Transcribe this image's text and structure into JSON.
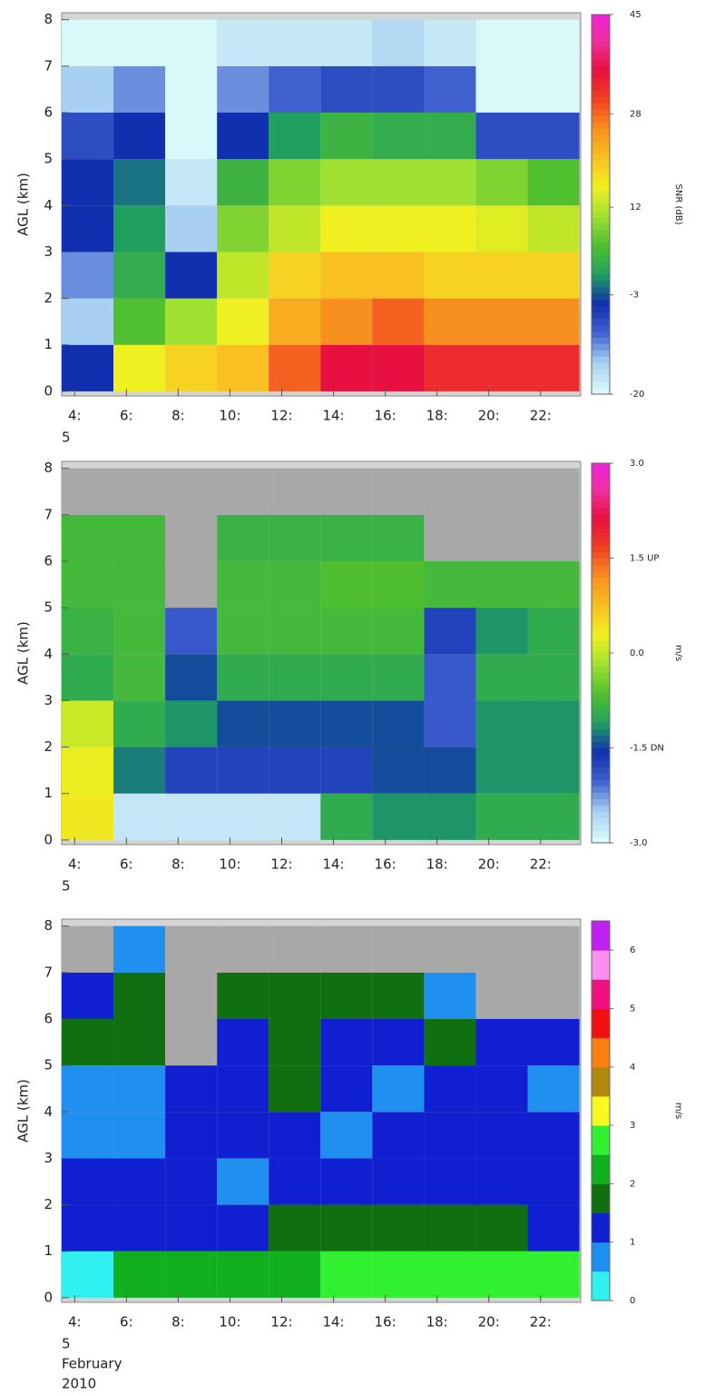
{
  "chart_data": [
    {
      "type": "heatmap",
      "ylabel": "AGL (km)",
      "colorbar_label": "SNR (dB)",
      "x_sublabels": [
        "5"
      ],
      "xlim": [
        3.5,
        23.55
      ],
      "ylim": [
        -0.1,
        8.15
      ],
      "xticks": [
        {
          "value": 4,
          "label": "4:"
        },
        {
          "value": 6,
          "label": "6:"
        },
        {
          "value": 8,
          "label": "8:"
        },
        {
          "value": 10,
          "label": "10:"
        },
        {
          "value": 12,
          "label": "12:"
        },
        {
          "value": 14,
          "label": "14:"
        },
        {
          "value": 16,
          "label": "16:"
        },
        {
          "value": 18,
          "label": "18:"
        },
        {
          "value": 20,
          "label": "20:"
        },
        {
          "value": 22,
          "label": "22:"
        }
      ],
      "yticks": [
        0,
        1,
        2,
        3,
        4,
        5,
        6,
        7,
        8
      ],
      "zlim": [
        -20,
        45
      ],
      "zticks": [
        -20,
        -3,
        12,
        28,
        45
      ],
      "discrete": false,
      "colors": [
        "#d8f8fa",
        "#a8d0f0",
        "#4060d0",
        "#1030b0",
        "#20a060",
        "#50c030",
        "#a0e030",
        "#f0f020",
        "#f8c020",
        "#f89020",
        "#f04020",
        "#e81040",
        "#f030a0",
        "#f020e0"
      ],
      "x": [
        4.5,
        6.5,
        8.5,
        10.5,
        12.5,
        14.5,
        16.5,
        18.5,
        20.5,
        22.5
      ],
      "y": [
        0.5,
        1.5,
        2.5,
        3.5,
        4.5,
        5.5,
        6.5,
        7.5
      ],
      "z": [
        [
          -5,
          15,
          18,
          20,
          28,
          35,
          35,
          32,
          32,
          32
        ],
        [
          -15,
          5,
          10,
          15,
          22,
          25,
          28,
          25,
          25,
          25
        ],
        [
          -12,
          2,
          -5,
          12,
          18,
          20,
          20,
          18,
          18,
          18
        ],
        [
          -5,
          0,
          -15,
          8,
          12,
          15,
          15,
          15,
          14,
          12
        ],
        [
          -5,
          -2,
          -18,
          3,
          8,
          10,
          10,
          10,
          8,
          5
        ],
        [
          -8,
          -5,
          -20,
          -5,
          0,
          3,
          2,
          2,
          -8,
          -8
        ],
        [
          -15,
          -12,
          -20,
          -12,
          -10,
          -8,
          -8,
          -10,
          -20,
          -20
        ],
        [
          -20,
          -20,
          -20,
          -18,
          -18,
          -18,
          -16,
          -18,
          -20,
          -20
        ]
      ]
    },
    {
      "type": "heatmap",
      "ylabel": "AGL (km)",
      "colorbar_label": "m/s",
      "x_sublabels": [
        "5"
      ],
      "xlim": [
        3.5,
        23.55
      ],
      "ylim": [
        -0.1,
        8.15
      ],
      "xticks": [
        {
          "value": 4,
          "label": "4:"
        },
        {
          "value": 6,
          "label": "6:"
        },
        {
          "value": 8,
          "label": "8:"
        },
        {
          "value": 10,
          "label": "10:"
        },
        {
          "value": 12,
          "label": "12:"
        },
        {
          "value": 14,
          "label": "14:"
        },
        {
          "value": 16,
          "label": "16:"
        },
        {
          "value": 18,
          "label": "18:"
        },
        {
          "value": 20,
          "label": "20:"
        },
        {
          "value": 22,
          "label": "22:"
        }
      ],
      "yticks": [
        0,
        1,
        2,
        3,
        4,
        5,
        6,
        7,
        8
      ],
      "zlim": [
        -3,
        3
      ],
      "zticks": [
        {
          "value": -3,
          "label": "-3.0"
        },
        {
          "value": -1.5,
          "label": "-1.5 DN"
        },
        {
          "value": 0,
          "label": "0.0"
        },
        {
          "value": 1.5,
          "label": "1.5 UP"
        },
        {
          "value": 3,
          "label": "3.0"
        }
      ],
      "discrete": false,
      "colors": [
        "#d8f8fa",
        "#a8d0f0",
        "#4060d0",
        "#1030b0",
        "#20a060",
        "#50c030",
        "#a0e030",
        "#f0f020",
        "#f8c020",
        "#f89020",
        "#f04020",
        "#e81040",
        "#f030a0",
        "#f020e0"
      ],
      "x": [
        4.5,
        6.5,
        8.5,
        10.5,
        12.5,
        14.5,
        16.5,
        18.5,
        20.5,
        22.5
      ],
      "y": [
        0.5,
        1.5,
        2.5,
        3.5,
        4.5,
        5.5,
        6.5,
        7.5
      ],
      "z": [
        [
          0.3,
          -2.8,
          -2.8,
          -2.8,
          -2.8,
          -1.0,
          -1.2,
          -1.2,
          -1.0,
          -1.0
        ],
        [
          0.2,
          -1.3,
          -1.8,
          -1.8,
          -1.8,
          -1.8,
          -1.5,
          -1.5,
          -1.2,
          -1.2
        ],
        [
          0.0,
          -1.0,
          -1.2,
          -1.5,
          -1.5,
          -1.5,
          -1.5,
          -2.0,
          -1.2,
          -1.2
        ],
        [
          -1.0,
          -0.8,
          -1.5,
          -1.0,
          -1.0,
          -1.0,
          -1.0,
          -2.0,
          -1.0,
          -1.0
        ],
        [
          -0.9,
          -0.8,
          -2.0,
          -0.8,
          -0.8,
          -0.8,
          -0.8,
          -1.8,
          -1.2,
          -1.0
        ],
        [
          -0.8,
          -0.8,
          null,
          -0.8,
          -0.8,
          -0.7,
          -0.7,
          -0.8,
          -0.8,
          -0.8
        ],
        [
          -0.8,
          -0.8,
          null,
          -0.9,
          -0.9,
          -0.9,
          -0.9,
          null,
          null,
          null
        ],
        [
          null,
          null,
          null,
          null,
          null,
          null,
          null,
          null,
          null,
          null
        ]
      ]
    },
    {
      "type": "heatmap",
      "ylabel": "AGL (km)",
      "colorbar_label": "m/s",
      "x_sublabels": [
        "5",
        "February",
        "2010"
      ],
      "xlim": [
        3.5,
        23.55
      ],
      "ylim": [
        -0.1,
        8.15
      ],
      "xticks": [
        {
          "value": 4,
          "label": "4:"
        },
        {
          "value": 6,
          "label": "6:"
        },
        {
          "value": 8,
          "label": "8:"
        },
        {
          "value": 10,
          "label": "10:"
        },
        {
          "value": 12,
          "label": "12:"
        },
        {
          "value": 14,
          "label": "14:"
        },
        {
          "value": 16,
          "label": "16:"
        },
        {
          "value": 18,
          "label": "18:"
        },
        {
          "value": 20,
          "label": "20:"
        },
        {
          "value": 22,
          "label": "22:"
        }
      ],
      "yticks": [
        0,
        1,
        2,
        3,
        4,
        5,
        6,
        7,
        8
      ],
      "zlim": [
        0,
        6.5
      ],
      "zticks": [
        0,
        1,
        2,
        3,
        4,
        5,
        6
      ],
      "discrete": true,
      "colors": [
        "#30f0f0",
        "#2090f0",
        "#1020d0",
        "#107010",
        "#10b020",
        "#30f030",
        "#f8f820",
        "#b08810",
        "#f88010",
        "#f01010",
        "#f01080",
        "#f890f0",
        "#c020f0"
      ],
      "x": [
        4.5,
        6.5,
        8.5,
        10.5,
        12.5,
        14.5,
        16.5,
        18.5,
        20.5,
        22.5
      ],
      "y": [
        0.5,
        1.5,
        2.5,
        3.5,
        4.5,
        5.5,
        6.5,
        7.5
      ],
      "z": [
        [
          0.4,
          2.0,
          2.2,
          2.3,
          2.4,
          2.5,
          2.6,
          2.5,
          2.6,
          2.5
        ],
        [
          1.2,
          1.3,
          1.4,
          1.3,
          1.7,
          1.8,
          1.8,
          1.8,
          1.6,
          1.4
        ],
        [
          1.2,
          1.0,
          1.3,
          0.8,
          1.2,
          1.3,
          1.2,
          1.3,
          1.2,
          1.2
        ],
        [
          0.8,
          0.9,
          1.0,
          1.2,
          1.3,
          0.8,
          1.3,
          1.2,
          1.3,
          1.2
        ],
        [
          0.8,
          0.8,
          1.2,
          1.2,
          1.7,
          1.2,
          0.8,
          1.2,
          1.2,
          0.8
        ],
        [
          1.7,
          1.6,
          null,
          1.3,
          1.7,
          1.3,
          1.2,
          1.7,
          1.3,
          1.2
        ],
        [
          1.2,
          1.7,
          null,
          1.7,
          1.8,
          1.8,
          1.7,
          0.8,
          null,
          null
        ],
        [
          null,
          0.8,
          null,
          null,
          null,
          null,
          null,
          null,
          null,
          null
        ]
      ]
    }
  ]
}
